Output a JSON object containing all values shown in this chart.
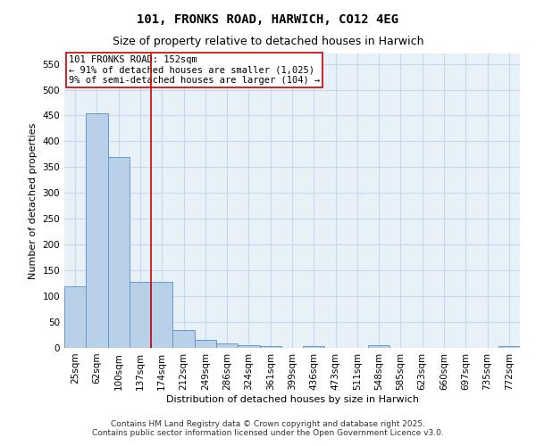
{
  "title": "101, FRONKS ROAD, HARWICH, CO12 4EG",
  "subtitle": "Size of property relative to detached houses in Harwich",
  "xlabel": "Distribution of detached houses by size in Harwich",
  "ylabel": "Number of detached properties",
  "categories": [
    "25sqm",
    "62sqm",
    "100sqm",
    "137sqm",
    "174sqm",
    "212sqm",
    "249sqm",
    "286sqm",
    "324sqm",
    "361sqm",
    "399sqm",
    "436sqm",
    "473sqm",
    "511sqm",
    "548sqm",
    "585sqm",
    "623sqm",
    "660sqm",
    "697sqm",
    "735sqm",
    "772sqm"
  ],
  "values": [
    120,
    455,
    370,
    128,
    128,
    35,
    15,
    8,
    5,
    4,
    0,
    3,
    0,
    0,
    5,
    0,
    0,
    0,
    0,
    0,
    4
  ],
  "bar_color": "#b8d0e8",
  "bar_edge_color": "#6699cc",
  "vline_x": 3.5,
  "vline_color": "#cc0000",
  "annotation_text": "101 FRONKS ROAD: 152sqm\n← 91% of detached houses are smaller (1,025)\n9% of semi-detached houses are larger (104) →",
  "annotation_box_color": "white",
  "annotation_box_edge": "#cc0000",
  "ylim": [
    0,
    570
  ],
  "yticks": [
    0,
    50,
    100,
    150,
    200,
    250,
    300,
    350,
    400,
    450,
    500,
    550
  ],
  "grid_color": "#c5d8ec",
  "background_color": "#e8f0f8",
  "footer": "Contains HM Land Registry data © Crown copyright and database right 2025.\nContains public sector information licensed under the Open Government Licence v3.0.",
  "title_fontsize": 10,
  "subtitle_fontsize": 9,
  "axis_label_fontsize": 8,
  "tick_fontsize": 7.5,
  "annotation_fontsize": 7.5,
  "footer_fontsize": 6.5
}
